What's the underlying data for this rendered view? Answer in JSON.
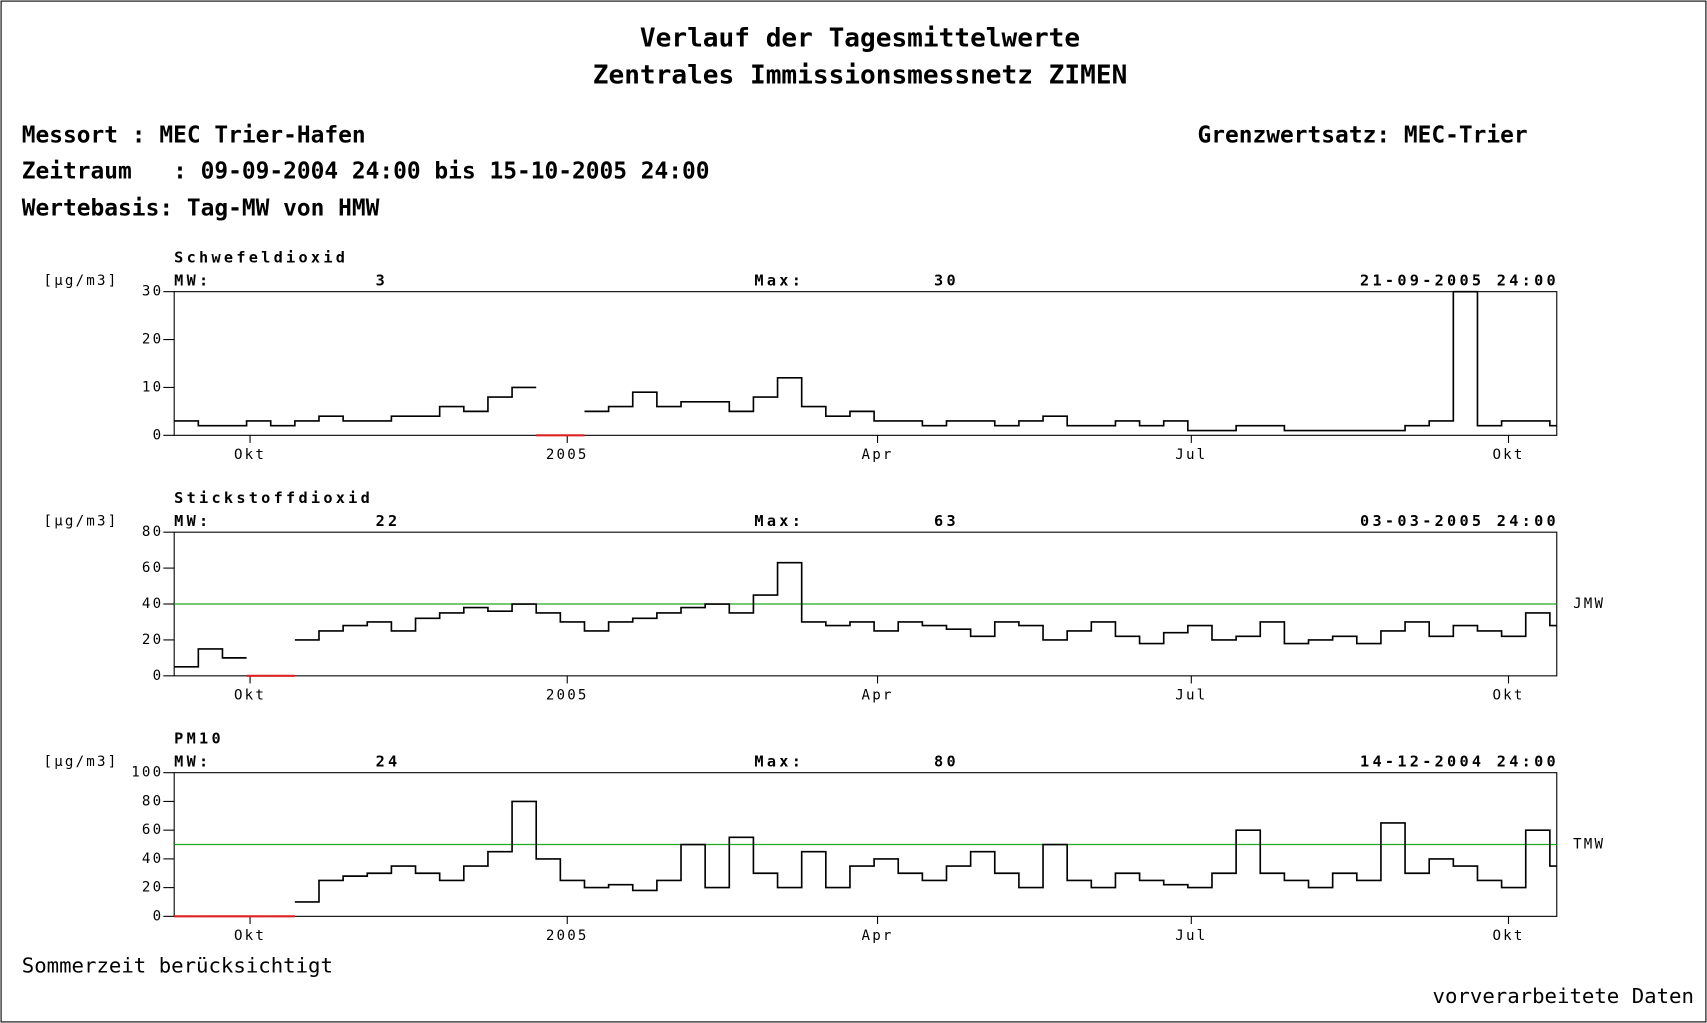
{
  "header": {
    "title": [
      "Verlauf der Tagesmittelwerte",
      "Zentrales Immissionsmessnetz ZIMEN"
    ],
    "messort": "Messort : MEC Trier-Hafen",
    "zeitraum": "Zeitraum   : 09-09-2004 24:00 bis 15-10-2005 24:00",
    "wertebasis": "Wertebasis: Tag-MW von HMW",
    "grenzwertsatz": "Grenzwertsatz: MEC-Trier"
  },
  "footer": {
    "left": "Sommerzeit berücksichtigt",
    "right": "vorverarbeitete Daten"
  },
  "chart_data": {
    "type": "line",
    "step": true,
    "xlim": [
      "2004-09-09",
      "2005-10-15"
    ],
    "xticks": [
      {
        "value": "2004-10-01",
        "label": "Okt"
      },
      {
        "value": "2005-01-01",
        "label": "2005"
      },
      {
        "value": "2005-04-01",
        "label": "Apr"
      },
      {
        "value": "2005-07-01",
        "label": "Jul"
      },
      {
        "value": "2005-10-01",
        "label": "Okt"
      }
    ],
    "x": [
      "2004-09-09",
      "2004-09-16",
      "2004-09-23",
      "2004-09-30",
      "2004-10-07",
      "2004-10-14",
      "2004-10-21",
      "2004-10-28",
      "2004-11-04",
      "2004-11-11",
      "2004-11-18",
      "2004-11-25",
      "2004-12-02",
      "2004-12-09",
      "2004-12-16",
      "2004-12-23",
      "2004-12-30",
      "2005-01-06",
      "2005-01-13",
      "2005-01-20",
      "2005-01-27",
      "2005-02-03",
      "2005-02-10",
      "2005-02-17",
      "2005-02-24",
      "2005-03-03",
      "2005-03-10",
      "2005-03-17",
      "2005-03-24",
      "2005-03-31",
      "2005-04-07",
      "2005-04-14",
      "2005-04-21",
      "2005-04-28",
      "2005-05-05",
      "2005-05-12",
      "2005-05-19",
      "2005-05-26",
      "2005-06-02",
      "2005-06-09",
      "2005-06-16",
      "2005-06-23",
      "2005-06-30",
      "2005-07-07",
      "2005-07-14",
      "2005-07-21",
      "2005-07-28",
      "2005-08-04",
      "2005-08-11",
      "2005-08-18",
      "2005-08-25",
      "2005-09-01",
      "2005-09-08",
      "2005-09-15",
      "2005-09-22",
      "2005-09-29",
      "2005-10-06",
      "2005-10-13"
    ],
    "panels": [
      {
        "title": "Schwefeldioxid",
        "ylabel": "[µg/m3]",
        "mw_label": "MW:",
        "mw": 3,
        "max_label": "Max:",
        "max": 30,
        "max_date": "21-09-2005   24:00",
        "color": "#000000",
        "ylim": [
          0,
          30
        ],
        "yticks": [
          0,
          10,
          20,
          30
        ],
        "values": [
          3,
          2,
          2,
          3,
          2,
          3,
          4,
          3,
          3,
          4,
          4,
          6,
          5,
          8,
          10,
          null,
          null,
          5,
          6,
          9,
          6,
          7,
          7,
          5,
          8,
          12,
          6,
          4,
          5,
          3,
          3,
          2,
          3,
          3,
          2,
          3,
          4,
          2,
          2,
          3,
          2,
          3,
          1,
          1,
          2,
          2,
          1,
          1,
          1,
          1,
          1,
          2,
          3,
          30,
          2,
          3,
          3,
          2
        ]
      },
      {
        "title": "Stickstoffdioxid",
        "ylabel": "[µg/m3]",
        "mw_label": "MW:",
        "mw": 22,
        "max_label": "Max:",
        "max": 63,
        "max_date": "03-03-2005   24:00",
        "color": "#000000",
        "ylim": [
          0,
          80
        ],
        "yticks": [
          0,
          20,
          40,
          60,
          80
        ],
        "limit": {
          "value": 40,
          "label": "JMW",
          "color": "#22aa22"
        },
        "values": [
          5,
          15,
          10,
          null,
          null,
          20,
          25,
          28,
          30,
          25,
          32,
          35,
          38,
          36,
          40,
          35,
          30,
          25,
          30,
          32,
          35,
          38,
          40,
          35,
          45,
          63,
          30,
          28,
          30,
          25,
          30,
          28,
          26,
          22,
          30,
          28,
          20,
          25,
          30,
          22,
          18,
          24,
          28,
          20,
          22,
          30,
          18,
          20,
          22,
          18,
          25,
          30,
          22,
          28,
          25,
          22,
          35,
          28
        ]
      },
      {
        "title": "PM10",
        "ylabel": "[µg/m3]",
        "mw_label": "MW:",
        "mw": 24,
        "max_label": "Max:",
        "max": 80,
        "max_date": "14-12-2004   24:00",
        "color": "#000000",
        "ylim": [
          0,
          100
        ],
        "yticks": [
          0,
          20,
          40,
          60,
          80,
          100
        ],
        "limit": {
          "value": 50,
          "label": "TMW",
          "color": "#22aa22"
        },
        "values": [
          null,
          null,
          null,
          null,
          null,
          10,
          25,
          28,
          30,
          35,
          30,
          25,
          35,
          45,
          80,
          40,
          25,
          20,
          22,
          18,
          25,
          50,
          20,
          55,
          30,
          20,
          45,
          20,
          35,
          40,
          30,
          25,
          35,
          45,
          30,
          20,
          50,
          25,
          20,
          30,
          25,
          22,
          20,
          30,
          60,
          30,
          25,
          20,
          30,
          25,
          65,
          30,
          40,
          35,
          25,
          20,
          60,
          35
        ]
      }
    ]
  }
}
